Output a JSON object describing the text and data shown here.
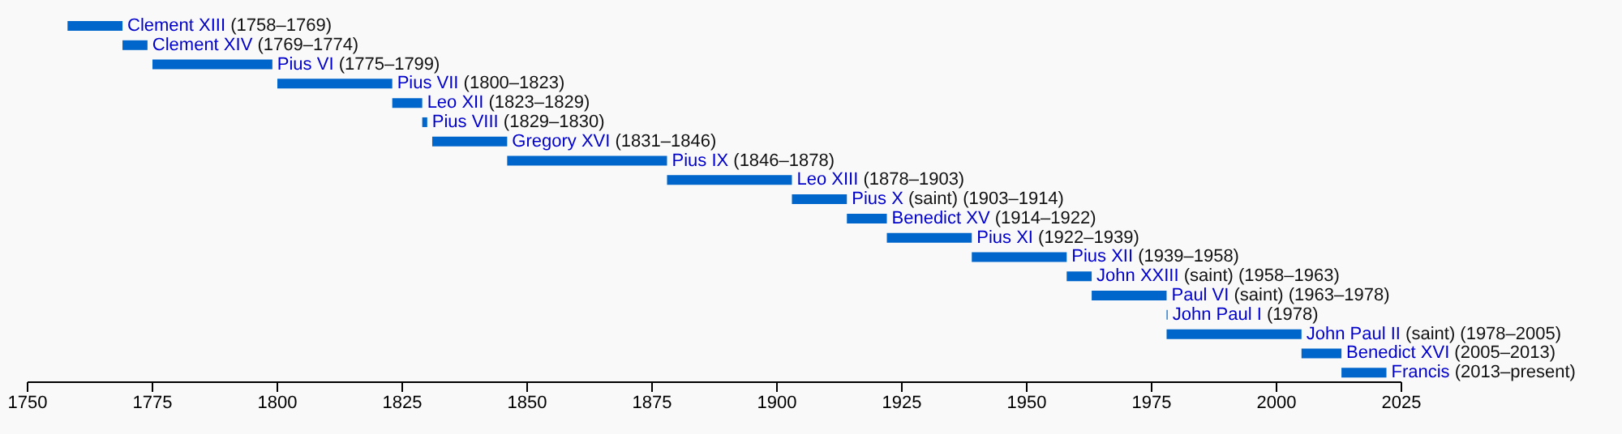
{
  "chart_data": {
    "type": "bar",
    "orientation": "horizontal",
    "categories": [
      "Clement XIII",
      "Clement XIV",
      "Pius VI",
      "Pius VII",
      "Leo XII",
      "Pius VIII",
      "Gregory XVI",
      "Pius IX",
      "Leo XIII",
      "Pius X",
      "Benedict XV",
      "Pius XI",
      "Pius XII",
      "John XXIII",
      "Paul VI",
      "John Paul I",
      "John Paul II",
      "Benedict XVI",
      "Francis"
    ],
    "base": [
      1758,
      1769,
      1775,
      1800,
      1823,
      1829,
      1831,
      1846,
      1878,
      1903,
      1914,
      1922,
      1939,
      1958,
      1963,
      1978,
      1978,
      2005,
      2013
    ],
    "values": [
      11,
      5,
      24,
      23,
      6,
      1,
      15,
      32,
      25,
      11,
      8,
      17,
      19,
      5,
      15,
      0.2,
      27,
      8,
      9
    ],
    "annotations": [
      "(1758–1769)",
      "(1769–1774)",
      "(1775–1799)",
      "(1800–1823)",
      "(1823–1829)",
      "(1829–1830)",
      "(1831–1846)",
      "(1846–1878)",
      "(1878–1903)",
      "(saint) (1903–1914)",
      "(1914–1922)",
      "(1922–1939)",
      "(1939–1958)",
      "(saint) (1958–1963)",
      "(saint) (1963–1978)",
      "(1978)",
      "(saint) (1978–2005)",
      "(2005–2013)",
      "(2013–present)"
    ],
    "color": "#0066cc",
    "xlim": [
      1750,
      2025
    ],
    "xticks": [
      1750,
      1775,
      1800,
      1825,
      1850,
      1875,
      1900,
      1925,
      1950,
      1975,
      2000,
      2025
    ],
    "tick_labels": "x",
    "grid": false
  }
}
